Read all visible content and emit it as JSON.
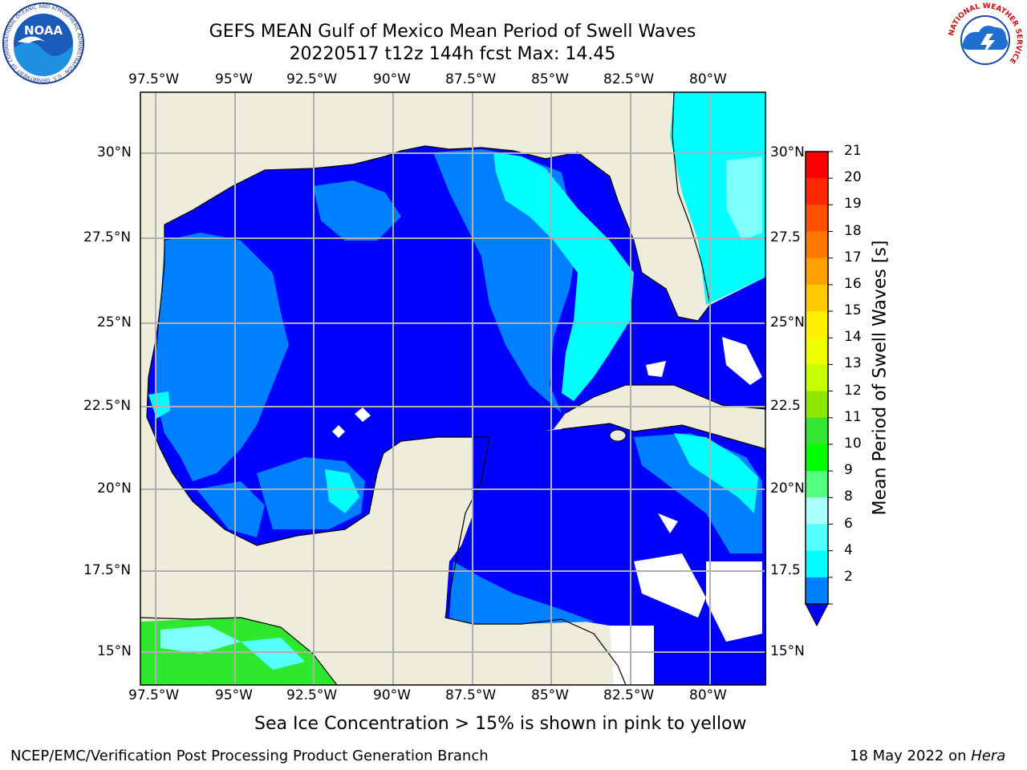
{
  "header": {
    "title_line1": "GEFS MEAN Gulf of Mexico Mean Period of Swell Waves",
    "title_line2": "20220517 t12z 144h fcst   Max: 14.45",
    "logo_left_text": "NOAA",
    "logo_left_ring_text": "NATIONAL OCEANIC AND ATMOSPHERIC ADMINISTRATION · U.S. DEPARTMENT OF COMMERCE",
    "logo_right_ring_text": "NATIONAL WEATHER SERVICE"
  },
  "map": {
    "lon_ticks": [
      "97.5°W",
      "95°W",
      "92.5°W",
      "90°W",
      "87.5°W",
      "85°W",
      "82.5°W",
      "80°W"
    ],
    "lat_ticks_left": [
      "30°N",
      "27.5°N",
      "25°N",
      "22.5°N",
      "20°N",
      "17.5°N",
      "15°N"
    ],
    "lat_ticks_right": [
      "30°N",
      "27.5",
      "25°N",
      "22.5",
      "20°N",
      "17.5",
      "15°N"
    ],
    "colors": {
      "land": "#eeeddc",
      "grid": "#b0b0b0",
      "deep_blue": "#0000ff",
      "mid_blue": "#0080ff",
      "cyan": "#00ffff",
      "light_cyan": "#80ffff",
      "green": "#2ee82e"
    }
  },
  "colorbar": {
    "label": "Mean Period of Swell Waves [s]",
    "ticks": [
      "21",
      "20",
      "19",
      "18",
      "17",
      "16",
      "15",
      "14",
      "13",
      "12",
      "11",
      "10",
      "9",
      "8",
      "6",
      "4",
      "2"
    ],
    "bins": [
      "#ff0000",
      "#ff2800",
      "#ff5000",
      "#ff7800",
      "#ffa000",
      "#ffc800",
      "#fff000",
      "#f0ff00",
      "#c8ff00",
      "#8ce600",
      "#32e632",
      "#00ff00",
      "#55ff80",
      "#aaffff",
      "#55ffff",
      "#00ffff",
      "#0080ff"
    ],
    "extend_color": "#0000ff"
  },
  "notes": {
    "sea_ice": "Sea Ice Concentration > 15% is shown in pink to yellow"
  },
  "footer": {
    "left": "NCEP/EMC/Verification Post Processing Product Generation Branch",
    "right_prefix": "18 May 2022 on ",
    "right_machine": "Hera"
  }
}
